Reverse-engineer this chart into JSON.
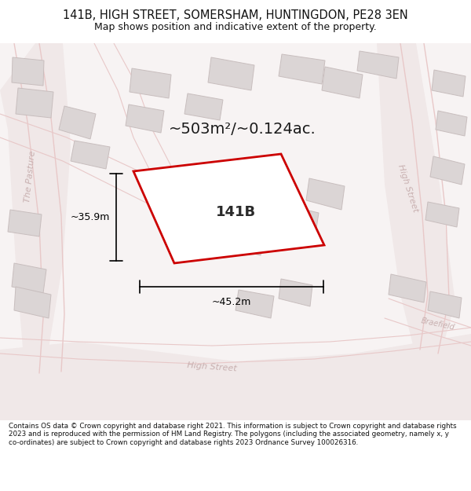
{
  "title_line1": "141B, HIGH STREET, SOMERSHAM, HUNTINGDON, PE28 3EN",
  "title_line2": "Map shows position and indicative extent of the property.",
  "area_label": "~503m²/~0.124ac.",
  "plot_label": "141B",
  "dim_width": "~45.2m",
  "dim_height": "~35.9m",
  "footer_text": "Contains OS data © Crown copyright and database right 2021. This information is subject to Crown copyright and database rights 2023 and is reproduced with the permission of HM Land Registry. The polygons (including the associated geometry, namely x, y co-ordinates) are subject to Crown copyright and database rights 2023 Ordnance Survey 100026316.",
  "map_bg": "#f7f3f3",
  "road_fill": "#f0e8e8",
  "road_line": "#e8c8c8",
  "building_color": "#dbd5d5",
  "building_outline": "#c8bebe",
  "plot_color": "#cc0000",
  "street_label_color": "#c8b0b0",
  "title_color": "#111111",
  "footer_color": "#111111",
  "title_fontsize": 10.5,
  "subtitle_fontsize": 9.0,
  "area_fontsize": 14.0,
  "plot_label_fontsize": 13.0,
  "dim_fontsize": 9.0,
  "street_fontsize": 8.0,
  "footer_fontsize": 6.3
}
